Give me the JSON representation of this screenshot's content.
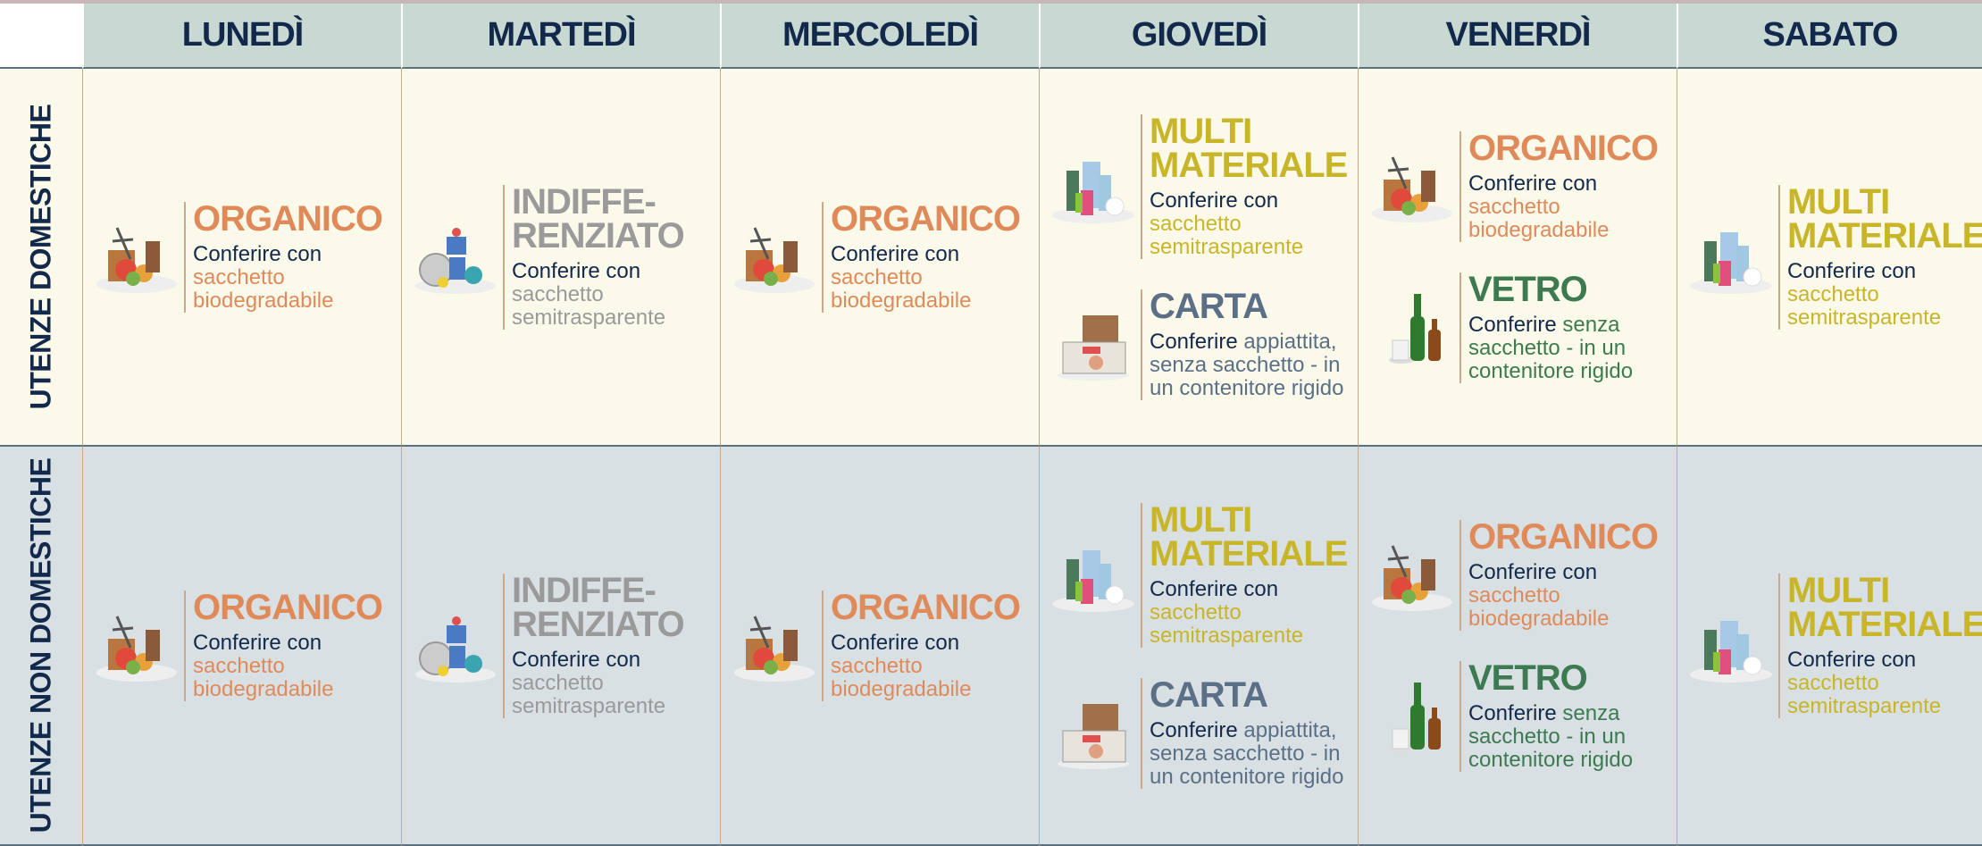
{
  "header": {
    "days": [
      "LUNEDÌ",
      "MARTEDÌ",
      "MERCOLEDÌ",
      "GIOVEDÌ",
      "VENERDÌ",
      "SABATO"
    ]
  },
  "rows": [
    {
      "label": "UTENZE DOMESTICHE",
      "cells": [
        [
          {
            "title": [
              "ORGANICO"
            ],
            "action": "Conferire con",
            "detail": "sacchetto biodegradabile",
            "color": "#e08a5a"
          }
        ],
        [
          {
            "title": [
              "INDIFFE-",
              "RENZIATO"
            ],
            "action": "Conferire con",
            "detail": "sacchetto semitrasparente",
            "color": "#9a9a9a"
          }
        ],
        [
          {
            "title": [
              "ORGANICO"
            ],
            "action": "Conferire con",
            "detail": "sacchetto biodegradabile",
            "color": "#e08a5a"
          }
        ],
        [
          {
            "title": [
              "MULTI",
              "MATERIALE"
            ],
            "action": "Conferire con",
            "detail": "sacchetto semitrasparente",
            "color": "#c9b52a"
          },
          {
            "title": [
              "CARTA"
            ],
            "action": "Conferire",
            "detail": "appiattita, senza sacchetto - in un contenitore rigido",
            "color": "#5b6f87"
          }
        ],
        [
          {
            "title": [
              "ORGANICO"
            ],
            "action": "Conferire con",
            "detail": "sacchetto biodegradabile",
            "color": "#e08a5a"
          },
          {
            "title": [
              "VETRO"
            ],
            "action": "Conferire",
            "detail": "senza sacchetto - in un contenitore rigido",
            "color": "#3d7a52"
          }
        ],
        [
          {
            "title": [
              "MULTI",
              "MATERIALE"
            ],
            "action": "Conferire con",
            "detail": "sacchetto semitrasparente",
            "color": "#c9b52a"
          }
        ]
      ]
    },
    {
      "label": "UTENZE NON DOMESTICHE",
      "cells": [
        [
          {
            "title": [
              "ORGANICO"
            ],
            "action": "Conferire con",
            "detail": "sacchetto biodegradabile",
            "color": "#e08a5a"
          }
        ],
        [
          {
            "title": [
              "INDIFFE-",
              "RENZIATO"
            ],
            "action": "Conferire con",
            "detail": "sacchetto semitrasparente",
            "color": "#9a9a9a"
          }
        ],
        [
          {
            "title": [
              "ORGANICO"
            ],
            "action": "Conferire con",
            "detail": "sacchetto biodegradabile",
            "color": "#e08a5a"
          }
        ],
        [
          {
            "title": [
              "MULTI",
              "MATERIALE"
            ],
            "action": "Conferire con",
            "detail": "sacchetto semitrasparente",
            "color": "#c9b52a"
          },
          {
            "title": [
              "CARTA"
            ],
            "action": "Conferire",
            "detail": "appiattita, senza sacchetto - in un contenitore rigido",
            "color": "#5b6f87"
          }
        ],
        [
          {
            "title": [
              "ORGANICO"
            ],
            "action": "Conferire con",
            "detail": "sacchetto biodegradabile",
            "color": "#e08a5a"
          },
          {
            "title": [
              "VETRO"
            ],
            "action": "Conferire",
            "detail": "senza sacchetto - in un contenitore rigido",
            "color": "#3d7a52"
          }
        ],
        [
          {
            "title": [
              "MULTI",
              "MATERIALE"
            ],
            "action": "Conferire con",
            "detail": "sacchetto semitrasparente",
            "color": "#c9b52a"
          }
        ]
      ]
    }
  ]
}
